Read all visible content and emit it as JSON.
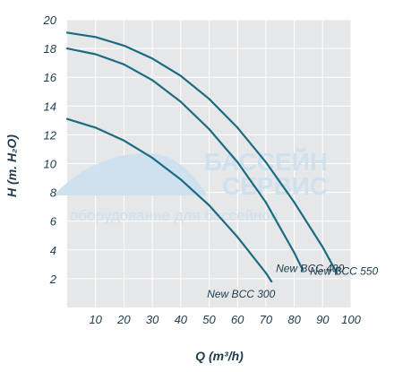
{
  "chart_data": {
    "type": "line",
    "xlabel": "Q (m³/h)",
    "ylabel": "H (m. H₂O)",
    "xlim": [
      0,
      100
    ],
    "ylim": [
      0,
      20
    ],
    "x_ticks": [
      10,
      20,
      30,
      40,
      50,
      60,
      70,
      80,
      90,
      100
    ],
    "y_ticks": [
      2,
      4,
      6,
      8,
      10,
      12,
      14,
      16,
      18,
      20
    ],
    "grid": true,
    "background": "#e6e7e8",
    "grid_color": "#ffffff",
    "line_color": "#1b6b82",
    "series": [
      {
        "name": "New BCC 300",
        "x": [
          0,
          10,
          20,
          30,
          40,
          50,
          60,
          70,
          72
        ],
        "y": [
          13.1,
          12.5,
          11.6,
          10.4,
          8.9,
          7.1,
          4.9,
          2.4,
          1.8
        ]
      },
      {
        "name": "New BCC 400",
        "x": [
          0,
          10,
          20,
          30,
          40,
          50,
          60,
          70,
          80,
          83
        ],
        "y": [
          18.0,
          17.6,
          16.9,
          15.8,
          14.3,
          12.4,
          10.1,
          7.3,
          3.8,
          2.6
        ]
      },
      {
        "name": "New BCC 550",
        "x": [
          0,
          10,
          20,
          30,
          40,
          50,
          60,
          70,
          80,
          90,
          95
        ],
        "y": [
          19.1,
          18.8,
          18.2,
          17.3,
          16.1,
          14.5,
          12.5,
          10.1,
          7.3,
          4.2,
          2.4
        ]
      }
    ]
  },
  "watermark": {
    "line1": "БАССЕЙН",
    "line2": "СЕРВИС",
    "line3": "оборудование для бассейнов"
  }
}
